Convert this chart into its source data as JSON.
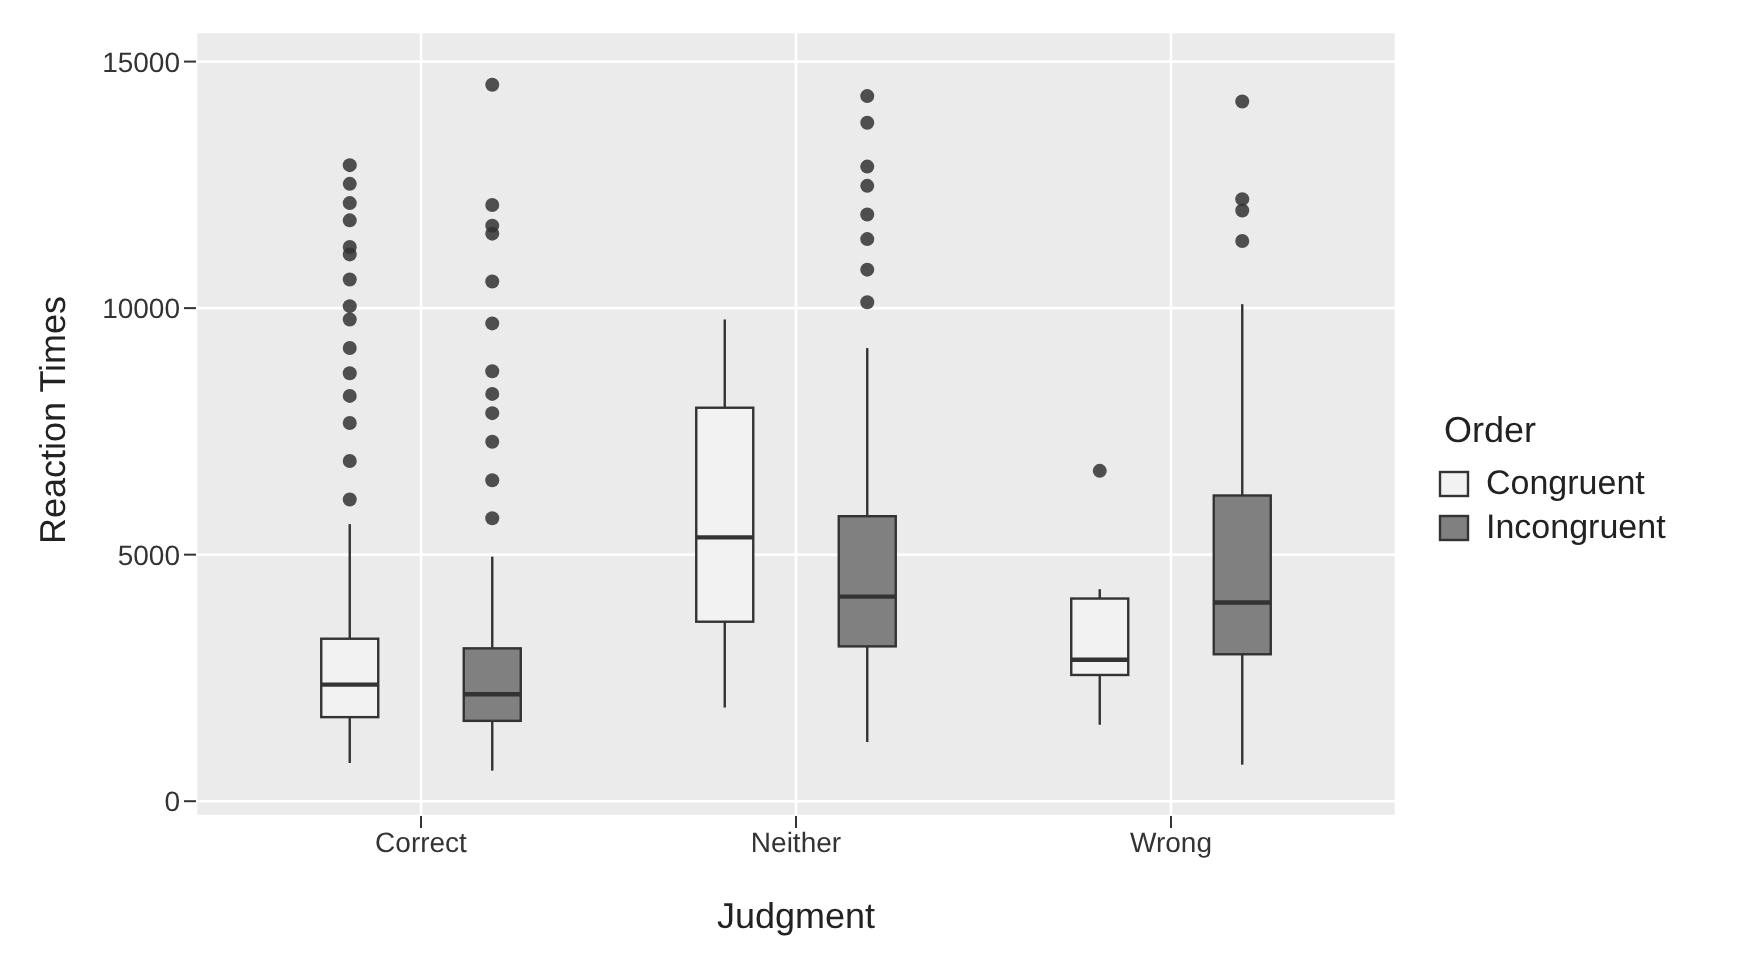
{
  "chart_data": {
    "type": "box",
    "xlabel": "Judgment",
    "ylabel": "Reaction Times",
    "legend_title": "Order",
    "legend": "right",
    "grid": true,
    "categories": [
      "Correct",
      "Neither",
      "Wrong"
    ],
    "ylim": [
      -300,
      15600
    ],
    "yticks": [
      0,
      5000,
      10000,
      15000
    ],
    "series": [
      {
        "name": "Congruent",
        "color": "#f2f2f2",
        "boxes": [
          {
            "low": 775,
            "q1": 1705,
            "median": 2364,
            "q3": 3295,
            "high": 5620,
            "outliers": [
              12900,
              12520,
              12130,
              11780,
              11240,
              11090,
              10580,
              10040,
              9770,
              9190,
              8680,
              8220,
              7670,
              6900,
              6120
            ]
          },
          {
            "low": 1900,
            "q1": 3640,
            "median": 5350,
            "q3": 7980,
            "high": 9770
          },
          {
            "low": 1550,
            "q1": 2560,
            "median": 2870,
            "q3": 4110,
            "high": 4300,
            "outliers": [
              6700
            ]
          }
        ]
      },
      {
        "name": "Incongruent",
        "color": "#808080",
        "boxes": [
          {
            "low": 620,
            "q1": 1630,
            "median": 2170,
            "q3": 3100,
            "high": 4960,
            "outliers": [
              14530,
              12090,
              11670,
              11510,
              10540,
              9690,
              8720,
              8260,
              7870,
              7290,
              6510,
              5740
            ]
          },
          {
            "low": 1200,
            "q1": 3140,
            "median": 4150,
            "q3": 5780,
            "high": 9190,
            "outliers": [
              14300,
              13760,
              12870,
              12480,
              11900,
              11400,
              10780,
              10120
            ]
          },
          {
            "low": 740,
            "q1": 2980,
            "median": 4030,
            "q3": 6200,
            "high": 10080,
            "outliers": [
              14190,
              12210,
              11980,
              11360
            ]
          }
        ]
      }
    ]
  }
}
